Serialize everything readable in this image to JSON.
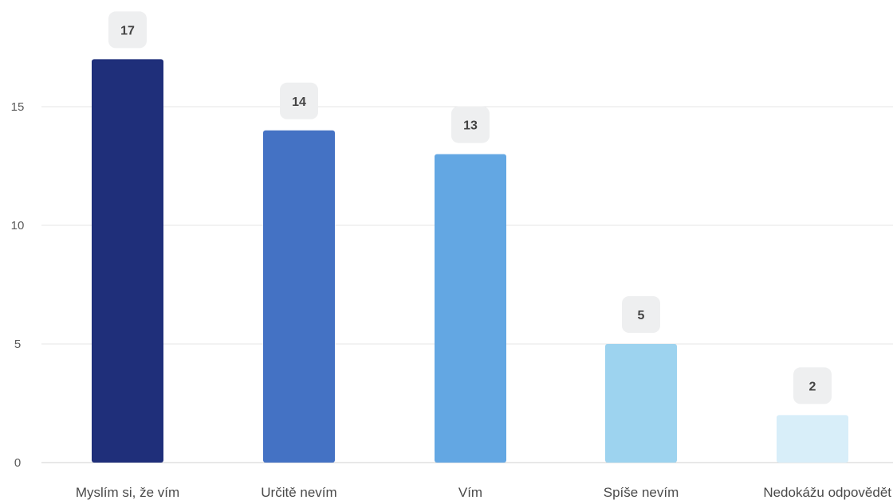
{
  "chart_data": {
    "type": "bar",
    "categories": [
      "Myslím si, že vím",
      "Určitě nevím",
      "Vím",
      "Spíše nevím",
      "Nedokážu odpovědět"
    ],
    "values": [
      17,
      14,
      13,
      5,
      2
    ],
    "data_labels": [
      "17",
      "14",
      "13",
      "5",
      "2"
    ],
    "bar_colors": [
      "#1f2f7a",
      "#4472c4",
      "#63a7e3",
      "#9dd3ef",
      "#d8eef9"
    ],
    "yticks": [
      0,
      5,
      10,
      15
    ],
    "ytick_labels": [
      "0",
      "5",
      "10",
      "15"
    ],
    "ylim": [
      0,
      19.5
    ],
    "grid": true,
    "title": "",
    "xlabel": "",
    "ylabel": ""
  }
}
